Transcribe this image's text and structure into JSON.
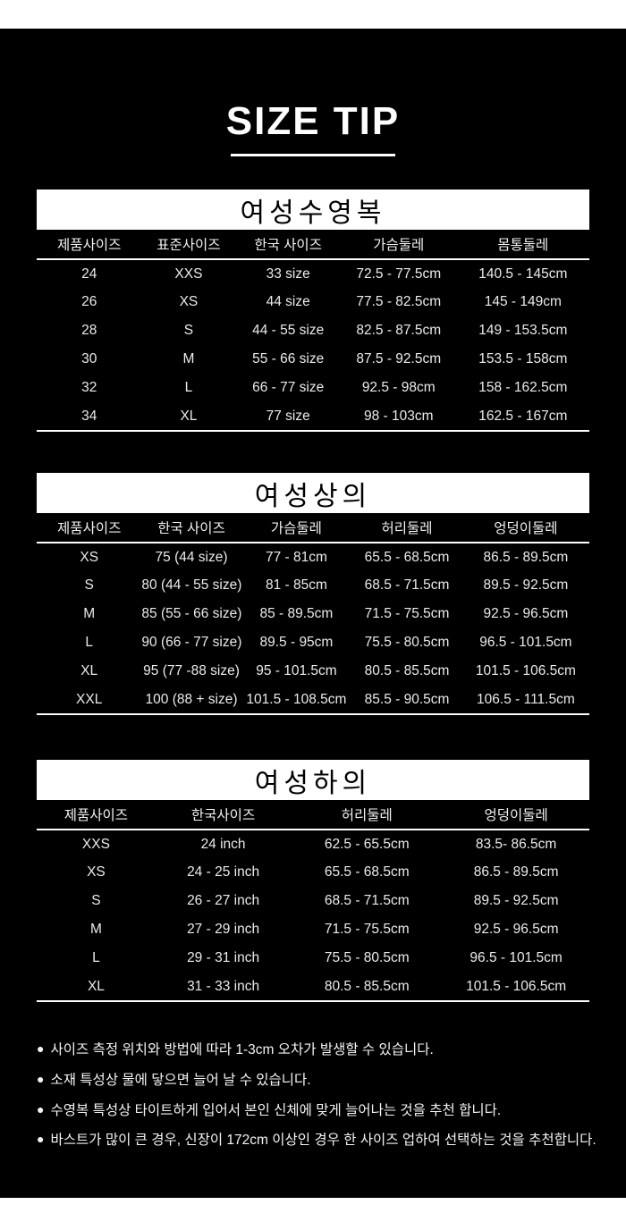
{
  "page_title": "SIZE TIP",
  "colors": {
    "page_background": "#ffffff",
    "panel_background": "#000000",
    "panel_text": "#f2f2f2",
    "table_title_bar_background": "#ffffff",
    "table_title_bar_text": "#000000",
    "divider": "#ffffff"
  },
  "bullet": "●",
  "tables": [
    {
      "title": "여성수영복",
      "headers": [
        "제품사이즈",
        "표준사이즈",
        "한국 사이즈",
        "가슴둘레",
        "몸통둘레"
      ],
      "rows": [
        [
          "24",
          "XXS",
          "33 size",
          "72.5 - 77.5cm",
          "140.5 - 145cm"
        ],
        [
          "26",
          "XS",
          "44 size",
          "77.5 - 82.5cm",
          "145  - 149cm"
        ],
        [
          "28",
          "S",
          "44 - 55 size",
          "82.5 - 87.5cm",
          "149  - 153.5cm"
        ],
        [
          "30",
          "M",
          "55 - 66 size",
          "87.5 - 92.5cm",
          "153.5 - 158cm"
        ],
        [
          "32",
          "L",
          "66 - 77 size",
          "92.5 - 98cm",
          "158 - 162.5cm"
        ],
        [
          "34",
          "XL",
          "77 size",
          "98 - 103cm",
          "162.5 - 167cm"
        ]
      ]
    },
    {
      "title": "여성상의",
      "headers": [
        "제품사이즈",
        "한국 사이즈",
        "가슴둘레",
        "허리둘레",
        "엉덩이둘레"
      ],
      "rows": [
        [
          "XS",
          "75 (44 size)",
          "77 - 81cm",
          "65.5 - 68.5cm",
          "86.5 - 89.5cm"
        ],
        [
          "S",
          "80 (44 - 55 size)",
          "81 - 85cm",
          "68.5 - 71.5cm",
          "89.5 - 92.5cm"
        ],
        [
          "M",
          "85 (55 - 66 size)",
          "85 - 89.5cm",
          "71.5 - 75.5cm",
          "92.5 - 96.5cm"
        ],
        [
          "L",
          "90 (66 - 77 size)",
          "89.5 - 95cm",
          "75.5 - 80.5cm",
          "96.5 - 101.5cm"
        ],
        [
          "XL",
          "95 (77 -88 size)",
          "95 - 101.5cm",
          "80.5 - 85.5cm",
          "101.5 - 106.5cm"
        ],
        [
          "XXL",
          "100 (88 + size)",
          "101.5 - 108.5cm",
          "85.5 - 90.5cm",
          "106.5 - 111.5cm"
        ]
      ]
    },
    {
      "title": "여성하의",
      "headers": [
        "제품사이즈",
        "한국사이즈",
        "허리둘레",
        "엉덩이둘레"
      ],
      "rows": [
        [
          "XXS",
          "24 inch",
          "62.5 - 65.5cm",
          "83.5- 86.5cm"
        ],
        [
          "XS",
          "24 - 25 inch",
          "65.5 - 68.5cm",
          "86.5 - 89.5cm"
        ],
        [
          "S",
          "26 - 27 inch",
          "68.5 - 71.5cm",
          "89.5 - 92.5cm"
        ],
        [
          "M",
          "27 - 29 inch",
          "71.5 - 75.5cm",
          "92.5 - 96.5cm"
        ],
        [
          "L",
          "29 - 31 inch",
          "75.5 - 80.5cm",
          "96.5 - 101.5cm"
        ],
        [
          "XL",
          "31 - 33 inch",
          "80.5 - 85.5cm",
          "101.5 - 106.5cm"
        ]
      ]
    }
  ],
  "notes": [
    "사이즈 측정 위치와 방법에 따라 1-3cm 오차가 발생할 수 있습니다.",
    "소재 특성상 물에 닿으면 늘어 날 수 있습니다.",
    "수영복 특성상 타이트하게 입어서 본인 신체에 맞게 늘어나는 것을 추천 합니다.",
    "바스트가 많이 큰 경우, 신장이 172cm 이상인 경우  한 사이즈 업하여 선택하는 것을 추천합니다."
  ]
}
